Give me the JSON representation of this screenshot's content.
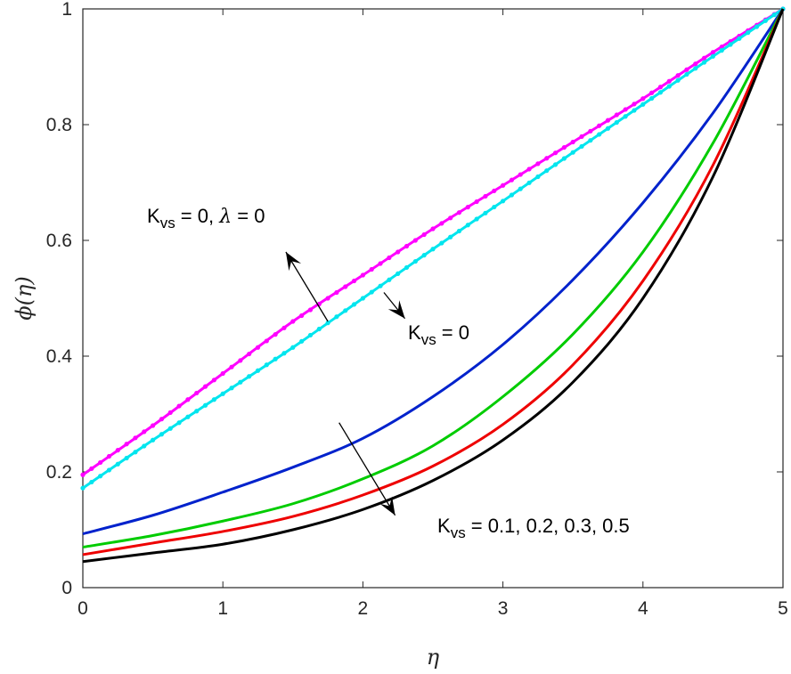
{
  "chart_data": {
    "type": "line",
    "title": "",
    "xlabel": "η",
    "ylabel": "ϕ(η)",
    "xlim": [
      0,
      5
    ],
    "ylim": [
      0,
      1
    ],
    "x_ticks": [
      "0",
      "1",
      "2",
      "3",
      "4",
      "5"
    ],
    "y_ticks": [
      "0",
      "0.2",
      "0.4",
      "0.6",
      "0.8",
      "1"
    ],
    "grid": false,
    "legend": "none",
    "series": [
      {
        "color": "#ff00ff",
        "style": "line-with-dot-markers",
        "points": [
          [
            0,
            0.195
          ],
          [
            0.5,
            0.28
          ],
          [
            1,
            0.37
          ],
          [
            1.5,
            0.46
          ],
          [
            2,
            0.54
          ],
          [
            2.5,
            0.62
          ],
          [
            3,
            0.695
          ],
          [
            3.5,
            0.77
          ],
          [
            4,
            0.845
          ],
          [
            4.5,
            0.925
          ],
          [
            5,
            1.0
          ]
        ]
      },
      {
        "color": "#00e5ee",
        "style": "line-with-dot-markers",
        "points": [
          [
            0,
            0.172
          ],
          [
            0.5,
            0.255
          ],
          [
            1,
            0.335
          ],
          [
            1.5,
            0.415
          ],
          [
            2,
            0.5
          ],
          [
            2.5,
            0.585
          ],
          [
            3,
            0.668
          ],
          [
            3.5,
            0.752
          ],
          [
            4,
            0.835
          ],
          [
            4.5,
            0.918
          ],
          [
            5,
            1.0
          ]
        ]
      },
      {
        "color": "#0022cc",
        "style": "line",
        "points": [
          [
            0,
            0.093
          ],
          [
            0.5,
            0.125
          ],
          [
            1,
            0.165
          ],
          [
            1.5,
            0.208
          ],
          [
            2,
            0.258
          ],
          [
            2.5,
            0.33
          ],
          [
            3,
            0.42
          ],
          [
            3.5,
            0.532
          ],
          [
            4,
            0.665
          ],
          [
            4.5,
            0.82
          ],
          [
            5,
            1.0
          ]
        ]
      },
      {
        "color": "#00cc00",
        "style": "line",
        "points": [
          [
            0,
            0.07
          ],
          [
            0.5,
            0.09
          ],
          [
            1,
            0.115
          ],
          [
            1.5,
            0.145
          ],
          [
            2,
            0.188
          ],
          [
            2.5,
            0.245
          ],
          [
            3,
            0.33
          ],
          [
            3.5,
            0.438
          ],
          [
            4,
            0.58
          ],
          [
            4.5,
            0.768
          ],
          [
            5,
            1.0
          ]
        ]
      },
      {
        "color": "#ee0000",
        "style": "line",
        "points": [
          [
            0,
            0.057
          ],
          [
            0.5,
            0.077
          ],
          [
            1,
            0.097
          ],
          [
            1.5,
            0.123
          ],
          [
            2,
            0.16
          ],
          [
            2.5,
            0.21
          ],
          [
            3,
            0.282
          ],
          [
            3.5,
            0.385
          ],
          [
            4,
            0.53
          ],
          [
            4.5,
            0.73
          ],
          [
            5,
            1.0
          ]
        ]
      },
      {
        "color": "#000000",
        "style": "line",
        "points": [
          [
            0,
            0.045
          ],
          [
            0.5,
            0.06
          ],
          [
            1,
            0.075
          ],
          [
            1.5,
            0.1
          ],
          [
            2,
            0.135
          ],
          [
            2.5,
            0.185
          ],
          [
            3,
            0.255
          ],
          [
            3.5,
            0.355
          ],
          [
            4,
            0.5
          ],
          [
            4.5,
            0.71
          ],
          [
            5,
            1.0
          ]
        ]
      }
    ],
    "annotations": [
      {
        "id": "kvs-lambda",
        "base": "K",
        "sub": "vs",
        "rest_a": " = 0, ",
        "greek": "λ",
        "rest_b": " = 0"
      },
      {
        "id": "kvs-zero",
        "base": "K",
        "sub": "vs",
        "rest_a": " = 0"
      },
      {
        "id": "kvs-values",
        "base": "K",
        "sub": "vs",
        "rest_a": " = 0.1, 0.2, 0.3, 0.5"
      }
    ],
    "arrows": [
      {
        "id": "arrow-up-left",
        "from": [
          1.75,
          0.46
        ],
        "to": [
          1.45,
          0.58
        ]
      },
      {
        "id": "arrow-small-down",
        "from": [
          2.15,
          0.51
        ],
        "to": [
          2.3,
          0.465
        ]
      },
      {
        "id": "arrow-down",
        "from": [
          1.83,
          0.285
        ],
        "to": [
          2.23,
          0.125
        ]
      }
    ]
  }
}
